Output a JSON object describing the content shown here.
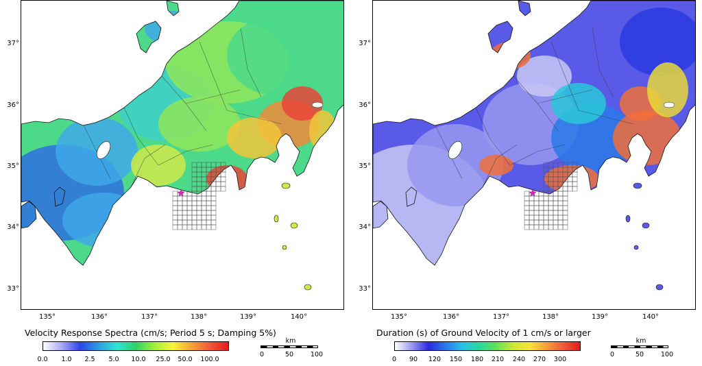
{
  "panels": [
    {
      "title": "Velocity Response Spectra (cm/s; Period 5 s; Damping 5%)",
      "colorbar": {
        "labels": [
          "0.0",
          "1.0",
          "2.5",
          "5.0",
          "10.0",
          "25.0",
          "50.0",
          "100.0"
        ],
        "colors": [
          "#ffffff",
          "#a9a9f5",
          "#2a45e6",
          "#2c9fe0",
          "#2fe3d3",
          "#2fd36a",
          "#9ff03a",
          "#f7f43a",
          "#f6a43a",
          "#f2593a",
          "#e41b1b"
        ]
      },
      "scale": {
        "unit": "km",
        "labels": [
          "0",
          "50",
          "100"
        ]
      },
      "lat_ticks": [
        "37°",
        "36°",
        "35°",
        "34°",
        "33°"
      ],
      "lon_ticks": [
        "135°",
        "136°",
        "137°",
        "138°",
        "139°",
        "140°"
      ],
      "palette": [
        "#2f6fe0",
        "#3fa8e8",
        "#3fd0c8",
        "#4cd98a",
        "#8fe55a",
        "#cfe94a",
        "#f2c43a",
        "#f08a3a",
        "#e8453a"
      ],
      "sea_color": "#ffffff"
    },
    {
      "title": "Duration (s) of Ground Velocity of 1 cm/s or larger",
      "colorbar": {
        "labels": [
          "0",
          "90",
          "120",
          "150",
          "180",
          "210",
          "240",
          "270",
          "300"
        ],
        "colors": [
          "#ffffff",
          "#9a9af0",
          "#2a2ae0",
          "#2a78e8",
          "#2ac0e8",
          "#2ad8a0",
          "#5fe055",
          "#c8e83a",
          "#f7e43a",
          "#f6a03a",
          "#ee5a3a",
          "#e01b1b"
        ]
      },
      "scale": {
        "unit": "km",
        "labels": [
          "0",
          "50",
          "100"
        ]
      },
      "lat_ticks": [
        "37°",
        "36°",
        "35°",
        "34°",
        "33°"
      ],
      "lon_ticks": [
        "135°",
        "136°",
        "137°",
        "138°",
        "139°",
        "140°"
      ],
      "palette": [
        "#c8c8f5",
        "#9898f0",
        "#5a5ae8",
        "#2a3ae0",
        "#2a7ae8",
        "#2ac8d8",
        "#6fe06a",
        "#e8d83a",
        "#f0703a"
      ],
      "sea_color": "#ffffff"
    }
  ]
}
